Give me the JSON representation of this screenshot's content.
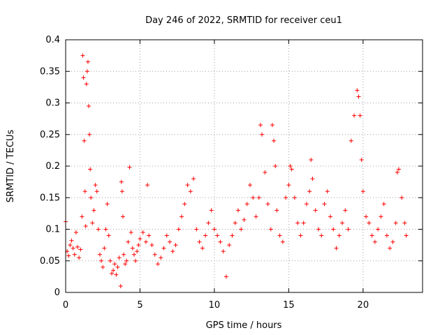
{
  "chart_data": {
    "type": "scatter",
    "title": "Day 246 of 2022, SRMTID for receiver ceu1",
    "xlabel": "GPS time / hours",
    "ylabel": "SRMTID / TECUs",
    "xlim": [
      0,
      24
    ],
    "ylim": [
      0,
      0.4
    ],
    "xticks": [
      0,
      5,
      10,
      15,
      20
    ],
    "yticks": [
      0,
      0.05,
      0.1,
      0.15,
      0.2,
      0.25,
      0.3,
      0.35,
      0.4
    ],
    "xtick_labels": [
      "0",
      "5",
      "10",
      "15",
      "20"
    ],
    "ytick_labels": [
      "0",
      "0.05",
      "0.1",
      "0.15",
      "0.2",
      "0.25",
      "0.3",
      "0.35",
      "0.4"
    ],
    "grid": true,
    "marker": "+",
    "color": "#ff0000",
    "series": [
      {
        "name": "SRMTID",
        "points": [
          [
            0.0,
            0.112
          ],
          [
            0.1,
            0.065
          ],
          [
            0.2,
            0.058
          ],
          [
            0.3,
            0.075
          ],
          [
            0.4,
            0.082
          ],
          [
            0.5,
            0.07
          ],
          [
            0.6,
            0.06
          ],
          [
            0.7,
            0.095
          ],
          [
            0.8,
            0.072
          ],
          [
            0.9,
            0.055
          ],
          [
            1.0,
            0.068
          ],
          [
            1.1,
            0.12
          ],
          [
            1.15,
            0.375
          ],
          [
            1.2,
            0.34
          ],
          [
            1.25,
            0.24
          ],
          [
            1.3,
            0.16
          ],
          [
            1.35,
            0.105
          ],
          [
            1.4,
            0.33
          ],
          [
            1.45,
            0.35
          ],
          [
            1.5,
            0.365
          ],
          [
            1.55,
            0.295
          ],
          [
            1.6,
            0.25
          ],
          [
            1.65,
            0.195
          ],
          [
            1.7,
            0.15
          ],
          [
            1.8,
            0.11
          ],
          [
            1.9,
            0.13
          ],
          [
            2.0,
            0.17
          ],
          [
            2.1,
            0.16
          ],
          [
            2.2,
            0.1
          ],
          [
            2.3,
            0.06
          ],
          [
            2.4,
            0.05
          ],
          [
            2.5,
            0.04
          ],
          [
            2.6,
            0.07
          ],
          [
            2.7,
            0.1
          ],
          [
            2.8,
            0.14
          ],
          [
            2.9,
            0.09
          ],
          [
            3.0,
            0.05
          ],
          [
            3.1,
            0.03
          ],
          [
            3.2,
            0.035
          ],
          [
            3.3,
            0.045
          ],
          [
            3.4,
            0.028
          ],
          [
            3.5,
            0.04
          ],
          [
            3.6,
            0.055
          ],
          [
            3.7,
            0.01
          ],
          [
            3.75,
            0.175
          ],
          [
            3.8,
            0.16
          ],
          [
            3.85,
            0.12
          ],
          [
            3.9,
            0.06
          ],
          [
            4.0,
            0.045
          ],
          [
            4.1,
            0.05
          ],
          [
            4.2,
            0.08
          ],
          [
            4.3,
            0.198
          ],
          [
            4.4,
            0.095
          ],
          [
            4.5,
            0.07
          ],
          [
            4.6,
            0.06
          ],
          [
            4.7,
            0.05
          ],
          [
            4.8,
            0.065
          ],
          [
            4.9,
            0.075
          ],
          [
            5.0,
            0.085
          ],
          [
            5.2,
            0.095
          ],
          [
            5.4,
            0.08
          ],
          [
            5.5,
            0.17
          ],
          [
            5.6,
            0.09
          ],
          [
            5.8,
            0.075
          ],
          [
            6.0,
            0.06
          ],
          [
            6.2,
            0.045
          ],
          [
            6.4,
            0.055
          ],
          [
            6.6,
            0.07
          ],
          [
            6.8,
            0.09
          ],
          [
            7.0,
            0.08
          ],
          [
            7.2,
            0.065
          ],
          [
            7.4,
            0.075
          ],
          [
            7.6,
            0.1
          ],
          [
            7.8,
            0.12
          ],
          [
            8.0,
            0.14
          ],
          [
            8.2,
            0.17
          ],
          [
            8.4,
            0.16
          ],
          [
            8.6,
            0.18
          ],
          [
            8.8,
            0.1
          ],
          [
            9.0,
            0.08
          ],
          [
            9.2,
            0.07
          ],
          [
            9.4,
            0.09
          ],
          [
            9.6,
            0.11
          ],
          [
            9.8,
            0.13
          ],
          [
            10.0,
            0.1
          ],
          [
            10.2,
            0.09
          ],
          [
            10.4,
            0.08
          ],
          [
            10.6,
            0.065
          ],
          [
            10.8,
            0.025
          ],
          [
            11.0,
            0.075
          ],
          [
            11.2,
            0.09
          ],
          [
            11.4,
            0.11
          ],
          [
            11.6,
            0.13
          ],
          [
            11.8,
            0.1
          ],
          [
            12.0,
            0.115
          ],
          [
            12.2,
            0.14
          ],
          [
            12.4,
            0.17
          ],
          [
            12.6,
            0.15
          ],
          [
            12.8,
            0.12
          ],
          [
            13.0,
            0.15
          ],
          [
            13.1,
            0.265
          ],
          [
            13.2,
            0.25
          ],
          [
            13.4,
            0.19
          ],
          [
            13.6,
            0.14
          ],
          [
            13.8,
            0.1
          ],
          [
            13.9,
            0.265
          ],
          [
            14.0,
            0.24
          ],
          [
            14.1,
            0.2
          ],
          [
            14.2,
            0.13
          ],
          [
            14.4,
            0.09
          ],
          [
            14.6,
            0.08
          ],
          [
            14.8,
            0.15
          ],
          [
            15.0,
            0.17
          ],
          [
            15.1,
            0.2
          ],
          [
            15.2,
            0.195
          ],
          [
            15.4,
            0.15
          ],
          [
            15.6,
            0.11
          ],
          [
            15.8,
            0.09
          ],
          [
            16.0,
            0.11
          ],
          [
            16.2,
            0.14
          ],
          [
            16.4,
            0.16
          ],
          [
            16.5,
            0.21
          ],
          [
            16.6,
            0.18
          ],
          [
            16.8,
            0.13
          ],
          [
            17.0,
            0.1
          ],
          [
            17.2,
            0.09
          ],
          [
            17.4,
            0.14
          ],
          [
            17.6,
            0.16
          ],
          [
            17.8,
            0.12
          ],
          [
            18.0,
            0.1
          ],
          [
            18.2,
            0.07
          ],
          [
            18.4,
            0.09
          ],
          [
            18.6,
            0.11
          ],
          [
            18.8,
            0.13
          ],
          [
            19.0,
            0.1
          ],
          [
            19.2,
            0.24
          ],
          [
            19.4,
            0.28
          ],
          [
            19.6,
            0.32
          ],
          [
            19.7,
            0.31
          ],
          [
            19.8,
            0.28
          ],
          [
            19.9,
            0.21
          ],
          [
            20.0,
            0.16
          ],
          [
            20.2,
            0.12
          ],
          [
            20.4,
            0.11
          ],
          [
            20.6,
            0.09
          ],
          [
            20.8,
            0.08
          ],
          [
            21.0,
            0.1
          ],
          [
            21.2,
            0.12
          ],
          [
            21.4,
            0.14
          ],
          [
            21.6,
            0.09
          ],
          [
            21.8,
            0.07
          ],
          [
            22.0,
            0.08
          ],
          [
            22.2,
            0.11
          ],
          [
            22.3,
            0.19
          ],
          [
            22.4,
            0.195
          ],
          [
            22.6,
            0.15
          ],
          [
            22.8,
            0.11
          ],
          [
            22.9,
            0.09
          ]
        ]
      }
    ]
  }
}
